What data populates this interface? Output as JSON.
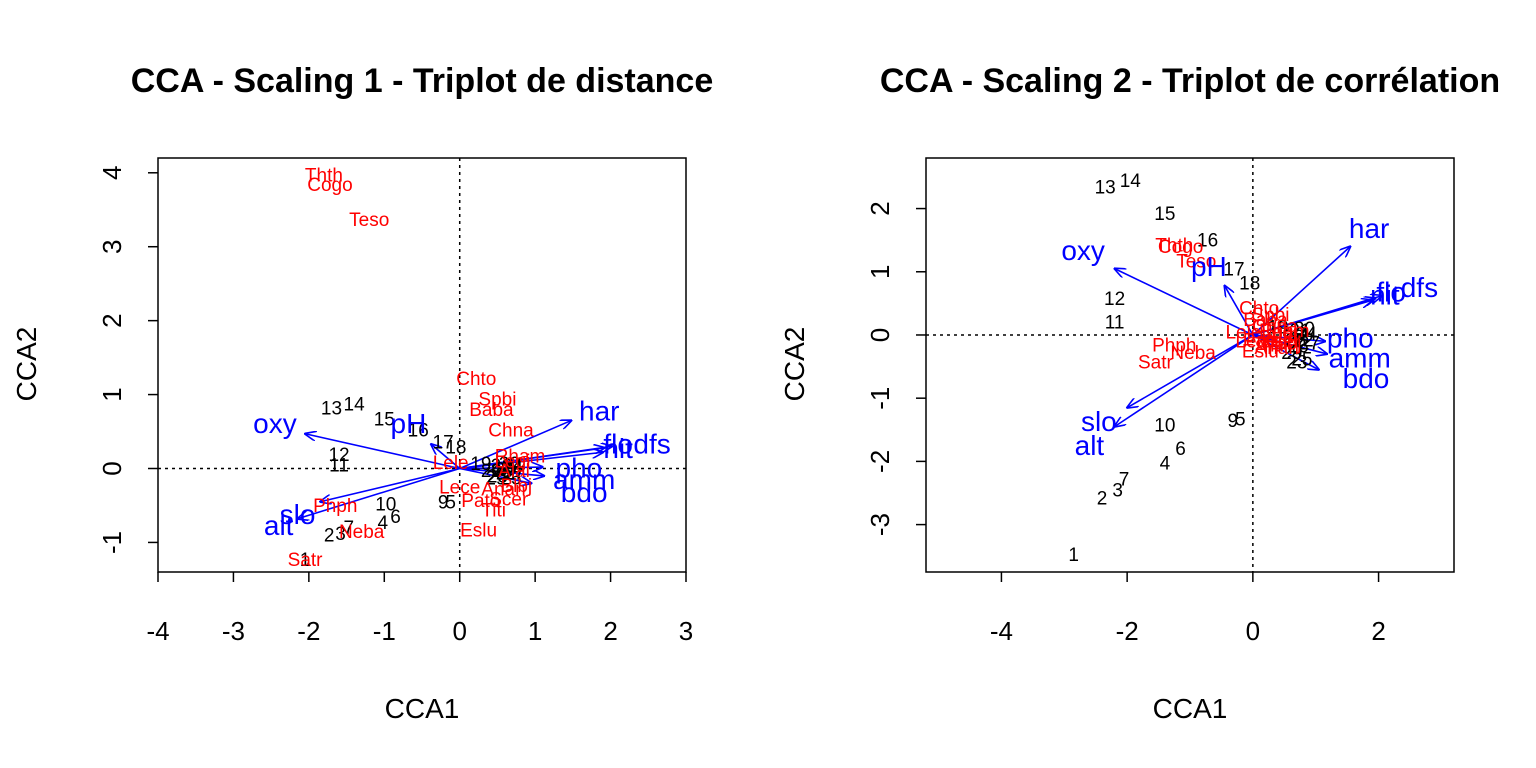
{
  "colors": {
    "sites": "#000000",
    "species": "#ff0000",
    "env": "#0000ff"
  },
  "chart_data": [
    {
      "type": "scatter",
      "title": "CCA - Scaling 1 - Triplot de distance",
      "xlabel": "CCA1",
      "ylabel": "CCA2",
      "xlim": [
        -4.0,
        3.0
      ],
      "ylim": [
        -1.4,
        4.2
      ],
      "xticks": [
        -4,
        -3,
        -2,
        -1,
        0,
        1,
        2,
        3
      ],
      "yticks": [
        -1,
        0,
        1,
        2,
        3,
        4
      ],
      "sites": [
        {
          "label": "1",
          "x": -2.05,
          "y": -1.25
        },
        {
          "label": "2",
          "x": -1.73,
          "y": -0.92
        },
        {
          "label": "3",
          "x": -1.58,
          "y": -0.9
        },
        {
          "label": "4",
          "x": -1.02,
          "y": -0.75
        },
        {
          "label": "5",
          "x": -0.12,
          "y": -0.47
        },
        {
          "label": "6",
          "x": -0.85,
          "y": -0.67
        },
        {
          "label": "7",
          "x": -1.47,
          "y": -0.82
        },
        {
          "label": "9",
          "x": -0.22,
          "y": -0.47
        },
        {
          "label": "10",
          "x": -0.98,
          "y": -0.5
        },
        {
          "label": "11",
          "x": -1.6,
          "y": 0.03
        },
        {
          "label": "12",
          "x": -1.6,
          "y": 0.17
        },
        {
          "label": "13",
          "x": -1.7,
          "y": 0.8
        },
        {
          "label": "14",
          "x": -1.4,
          "y": 0.85
        },
        {
          "label": "15",
          "x": -1.0,
          "y": 0.65
        },
        {
          "label": "16",
          "x": -0.55,
          "y": 0.5
        },
        {
          "label": "17",
          "x": -0.22,
          "y": 0.34
        },
        {
          "label": "18",
          "x": -0.05,
          "y": 0.27
        },
        {
          "label": "19",
          "x": 0.28,
          "y": 0.05
        },
        {
          "label": "20",
          "x": 0.42,
          "y": -0.05
        },
        {
          "label": "21",
          "x": 0.55,
          "y": 0.02
        },
        {
          "label": "22",
          "x": 0.62,
          "y": -0.08
        },
        {
          "label": "23",
          "x": 0.5,
          "y": -0.12
        },
        {
          "label": "24",
          "x": 0.7,
          "y": 0.02
        },
        {
          "label": "25",
          "x": 0.68,
          "y": -0.15
        },
        {
          "label": "26",
          "x": 0.6,
          "y": -0.03
        },
        {
          "label": "27",
          "x": 0.72,
          "y": -0.08
        },
        {
          "label": "28",
          "x": 0.55,
          "y": -0.05
        },
        {
          "label": "29",
          "x": 0.48,
          "y": -0.15
        },
        {
          "label": "30",
          "x": 0.66,
          "y": 0.05
        }
      ],
      "species": [
        {
          "label": "Thth",
          "x": -1.8,
          "y": 3.95
        },
        {
          "label": "Cogo",
          "x": -1.72,
          "y": 3.82
        },
        {
          "label": "Teso",
          "x": -1.2,
          "y": 3.35
        },
        {
          "label": "Chto",
          "x": 0.22,
          "y": 1.2
        },
        {
          "label": "Spbi",
          "x": 0.5,
          "y": 0.92
        },
        {
          "label": "Baba",
          "x": 0.42,
          "y": 0.78
        },
        {
          "label": "Chna",
          "x": 0.68,
          "y": 0.5
        },
        {
          "label": "Lele",
          "x": -0.12,
          "y": 0.06
        },
        {
          "label": "Lece",
          "x": 0.0,
          "y": -0.27
        },
        {
          "label": "Phph",
          "x": -1.65,
          "y": -0.52
        },
        {
          "label": "Neba",
          "x": -1.3,
          "y": -0.87
        },
        {
          "label": "Satr",
          "x": -2.05,
          "y": -1.25
        },
        {
          "label": "Eslu",
          "x": 0.25,
          "y": -0.85
        },
        {
          "label": "Pato",
          "x": 0.28,
          "y": -0.45
        },
        {
          "label": "Titi",
          "x": 0.45,
          "y": -0.58
        },
        {
          "label": "Scer",
          "x": 0.65,
          "y": -0.43
        },
        {
          "label": "Rham",
          "x": 0.8,
          "y": 0.15
        },
        {
          "label": "Legi",
          "x": 0.7,
          "y": 0.08
        },
        {
          "label": "Alal",
          "x": 0.72,
          "y": -0.05
        },
        {
          "label": "Blbj",
          "x": 0.75,
          "y": -0.25
        },
        {
          "label": "Anan",
          "x": 0.58,
          "y": -0.3
        }
      ],
      "env": [
        {
          "label": "oxy",
          "x": -2.05,
          "y": 0.47,
          "lx": -2.45,
          "ly": 0.58
        },
        {
          "label": "slo",
          "x": -1.85,
          "y": -0.45,
          "lx": -2.15,
          "ly": -0.65
        },
        {
          "label": "alt",
          "x": -2.15,
          "y": -0.68,
          "lx": -2.4,
          "ly": -0.8
        },
        {
          "label": "pH",
          "x": -0.38,
          "y": 0.33,
          "lx": -0.68,
          "ly": 0.58
        },
        {
          "label": "har",
          "x": 1.48,
          "y": 0.65,
          "lx": 1.85,
          "ly": 0.75
        },
        {
          "label": "flo",
          "x": 1.92,
          "y": 0.28,
          "lx": 2.1,
          "ly": 0.3
        },
        {
          "label": "dfs",
          "x": 2.02,
          "y": 0.3,
          "lx": 2.55,
          "ly": 0.3
        },
        {
          "label": "nit",
          "x": 1.9,
          "y": 0.22,
          "lx": 2.1,
          "ly": 0.24
        },
        {
          "label": "pho",
          "x": 1.1,
          "y": 0.02,
          "lx": 1.58,
          "ly": -0.02
        },
        {
          "label": "amm",
          "x": 1.12,
          "y": -0.1,
          "lx": 1.65,
          "ly": -0.18
        },
        {
          "label": "bdo",
          "x": 0.95,
          "y": -0.2,
          "lx": 1.65,
          "ly": -0.35
        }
      ]
    },
    {
      "type": "scatter",
      "title": "CCA - Scaling 2 - Triplot de corrélation",
      "xlabel": "CCA1",
      "ylabel": "CCA2",
      "xlim": [
        -5.2,
        3.2
      ],
      "ylim": [
        -3.75,
        2.8
      ],
      "xticks": [
        -4,
        -2,
        0,
        2
      ],
      "yticks": [
        -3,
        -2,
        -1,
        0,
        1,
        2
      ],
      "sites": [
        {
          "label": "1",
          "x": -2.85,
          "y": -3.5
        },
        {
          "label": "2",
          "x": -2.4,
          "y": -2.6
        },
        {
          "label": "3",
          "x": -2.15,
          "y": -2.48
        },
        {
          "label": "4",
          "x": -1.4,
          "y": -2.05
        },
        {
          "label": "5",
          "x": -0.2,
          "y": -1.35
        },
        {
          "label": "6",
          "x": -1.15,
          "y": -1.82
        },
        {
          "label": "7",
          "x": -2.05,
          "y": -2.3
        },
        {
          "label": "9",
          "x": -0.32,
          "y": -1.38
        },
        {
          "label": "10",
          "x": -1.4,
          "y": -1.45
        },
        {
          "label": "11",
          "x": -2.2,
          "y": 0.18
        },
        {
          "label": "12",
          "x": -2.2,
          "y": 0.55
        },
        {
          "label": "13",
          "x": -2.35,
          "y": 2.32
        },
        {
          "label": "14",
          "x": -1.95,
          "y": 2.42
        },
        {
          "label": "15",
          "x": -1.4,
          "y": 1.9
        },
        {
          "label": "16",
          "x": -0.72,
          "y": 1.48
        },
        {
          "label": "17",
          "x": -0.3,
          "y": 1.02
        },
        {
          "label": "18",
          "x": -0.05,
          "y": 0.8
        },
        {
          "label": "19",
          "x": 0.4,
          "y": 0.1
        },
        {
          "label": "20",
          "x": 0.65,
          "y": -0.05
        },
        {
          "label": "21",
          "x": 0.75,
          "y": 0.05
        },
        {
          "label": "22",
          "x": 0.8,
          "y": -0.1
        },
        {
          "label": "23",
          "x": 0.7,
          "y": -0.45
        },
        {
          "label": "24",
          "x": 0.85,
          "y": 0.0
        },
        {
          "label": "25",
          "x": 0.78,
          "y": -0.4
        },
        {
          "label": "26",
          "x": 0.72,
          "y": -0.2
        },
        {
          "label": "27",
          "x": 0.9,
          "y": -0.15
        },
        {
          "label": "28",
          "x": 0.68,
          "y": -0.1
        },
        {
          "label": "29",
          "x": 0.62,
          "y": -0.3
        },
        {
          "label": "30",
          "x": 0.82,
          "y": 0.08
        }
      ],
      "species": [
        {
          "label": "Thth",
          "x": -1.25,
          "y": 1.4
        },
        {
          "label": "Cogo",
          "x": -1.15,
          "y": 1.38
        },
        {
          "label": "Teso",
          "x": -0.9,
          "y": 1.15
        },
        {
          "label": "Chto",
          "x": 0.1,
          "y": 0.4
        },
        {
          "label": "Spbi",
          "x": 0.28,
          "y": 0.3
        },
        {
          "label": "Baba",
          "x": 0.2,
          "y": 0.22
        },
        {
          "label": "Chna",
          "x": 0.35,
          "y": 0.12
        },
        {
          "label": "Lele",
          "x": -0.15,
          "y": 0.02
        },
        {
          "label": "Lece",
          "x": 0.05,
          "y": -0.12
        },
        {
          "label": "Phph",
          "x": -1.25,
          "y": -0.18
        },
        {
          "label": "Neba",
          "x": -0.95,
          "y": -0.3
        },
        {
          "label": "Satr",
          "x": -1.55,
          "y": -0.45
        },
        {
          "label": "Eslu",
          "x": 0.12,
          "y": -0.28
        },
        {
          "label": "Pato",
          "x": 0.15,
          "y": -0.1
        },
        {
          "label": "Titi",
          "x": 0.3,
          "y": -0.18
        },
        {
          "label": "Scer",
          "x": 0.45,
          "y": -0.12
        },
        {
          "label": "Rham",
          "x": 0.5,
          "y": 0.05
        },
        {
          "label": "Legi",
          "x": 0.42,
          "y": 0.02
        },
        {
          "label": "Alal",
          "x": 0.45,
          "y": -0.05
        },
        {
          "label": "Blbj",
          "x": 0.52,
          "y": -0.15
        },
        {
          "label": "Anan",
          "x": 0.38,
          "y": -0.22
        }
      ],
      "env": [
        {
          "label": "oxy",
          "x": -2.2,
          "y": 1.05,
          "lx": -2.7,
          "ly": 1.3
        },
        {
          "label": "slo",
          "x": -2.0,
          "y": -1.15,
          "lx": -2.45,
          "ly": -1.4
        },
        {
          "label": "alt",
          "x": -2.2,
          "y": -1.45,
          "lx": -2.6,
          "ly": -1.78
        },
        {
          "label": "pH",
          "x": -0.45,
          "y": 0.78,
          "lx": -0.7,
          "ly": 1.05
        },
        {
          "label": "har",
          "x": 1.55,
          "y": 1.4,
          "lx": 1.85,
          "ly": 1.65
        },
        {
          "label": "flo",
          "x": 1.95,
          "y": 0.58,
          "lx": 2.2,
          "ly": 0.65
        },
        {
          "label": "dfs",
          "x": 2.05,
          "y": 0.62,
          "lx": 2.65,
          "ly": 0.72
        },
        {
          "label": "nit",
          "x": 1.9,
          "y": 0.55,
          "lx": 2.1,
          "ly": 0.6
        },
        {
          "label": "pho",
          "x": 1.15,
          "y": -0.1,
          "lx": 1.55,
          "ly": -0.08
        },
        {
          "label": "amm",
          "x": 1.18,
          "y": -0.3,
          "lx": 1.7,
          "ly": -0.4
        },
        {
          "label": "bdo",
          "x": 1.05,
          "y": -0.55,
          "lx": 1.8,
          "ly": -0.72
        }
      ]
    }
  ]
}
